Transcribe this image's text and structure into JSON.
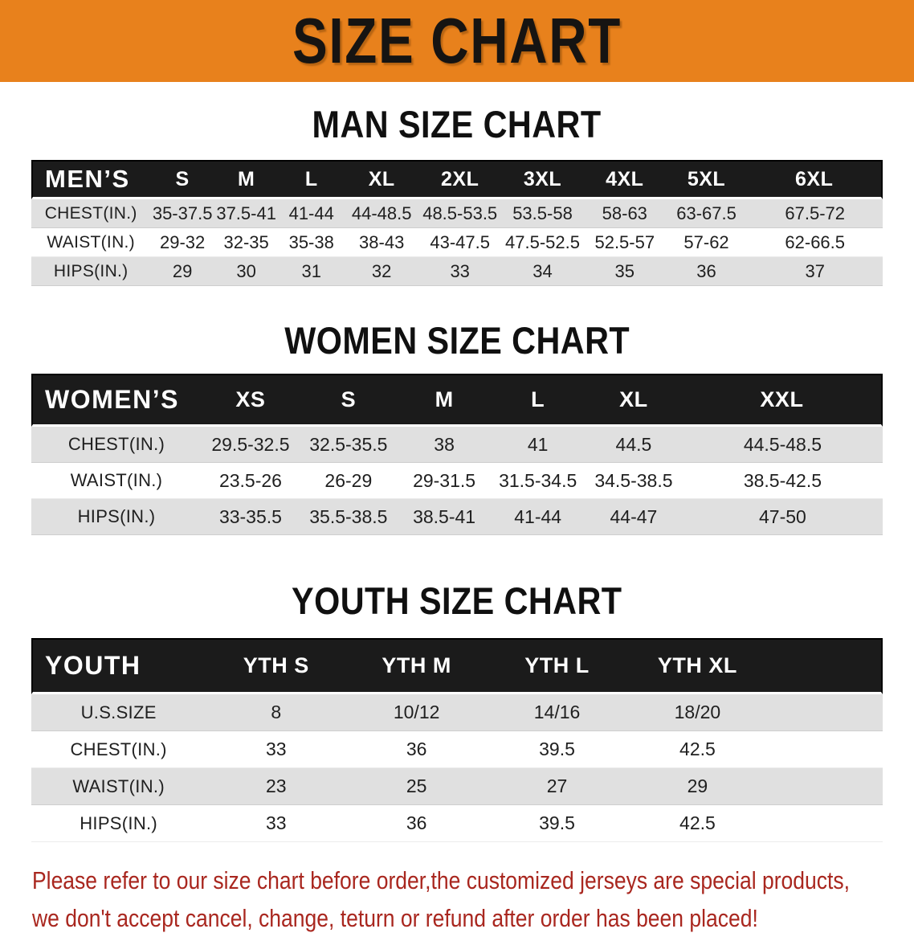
{
  "colors": {
    "banner-bg": "#e8811c",
    "header-bg": "#1b1b1b",
    "row-gray": "#e0e0e0",
    "disclaimer-red": "#a9271f"
  },
  "banner": {
    "title": "SIZE CHART"
  },
  "headings": {
    "men": "MAN SIZE CHART",
    "women": "WOMEN SIZE CHART",
    "youth": "YOUTH SIZE CHART"
  },
  "tables": {
    "men": {
      "label": "MEN’S",
      "sizes": [
        "S",
        "M",
        "L",
        "XL",
        "2XL",
        "3XL",
        "4XL",
        "5XL",
        "6XL"
      ],
      "rows": [
        {
          "label": "CHEST(IN.)",
          "values": [
            "35-37.5",
            "37.5-41",
            "41-44",
            "44-48.5",
            "48.5-53.5",
            "53.5-58",
            "58-63",
            "63-67.5",
            "67.5-72"
          ]
        },
        {
          "label": "WAIST(IN.)",
          "values": [
            "29-32",
            "32-35",
            "35-38",
            "38-43",
            "43-47.5",
            "47.5-52.5",
            "52.5-57",
            "57-62",
            "62-66.5"
          ]
        },
        {
          "label": "HIPS(IN.)",
          "values": [
            "29",
            "30",
            "31",
            "32",
            "33",
            "34",
            "35",
            "36",
            "37"
          ]
        }
      ]
    },
    "women": {
      "label": "WOMEN’S",
      "sizes": [
        "XS",
        "S",
        "M",
        "L",
        "XL",
        "XXL"
      ],
      "rows": [
        {
          "label": "CHEST(IN.)",
          "values": [
            "29.5-32.5",
            "32.5-35.5",
            "38",
            "41",
            "44.5",
            "44.5-48.5"
          ]
        },
        {
          "label": "WAIST(IN.)",
          "values": [
            "23.5-26",
            "26-29",
            "29-31.5",
            "31.5-34.5",
            "34.5-38.5",
            "38.5-42.5"
          ]
        },
        {
          "label": "HIPS(IN.)",
          "values": [
            "33-35.5",
            "35.5-38.5",
            "38.5-41",
            "41-44",
            "44-47",
            "47-50"
          ]
        }
      ]
    },
    "youth": {
      "label": "YOUTH",
      "sizes": [
        "YTH S",
        "YTH M",
        "YTH L",
        "YTH XL"
      ],
      "rows": [
        {
          "label": "U.S.SIZE",
          "values": [
            "8",
            "10/12",
            "14/16",
            "18/20"
          ]
        },
        {
          "label": "CHEST(IN.)",
          "values": [
            "33",
            "36",
            "39.5",
            "42.5"
          ]
        },
        {
          "label": "WAIST(IN.)",
          "values": [
            "23",
            "25",
            "27",
            "29"
          ]
        },
        {
          "label": "HIPS(IN.)",
          "values": [
            "33",
            "36",
            "39.5",
            "42.5"
          ]
        }
      ]
    }
  },
  "disclaimer": {
    "line1": "Please refer to our size chart before order,the customized jerseys are special products,",
    "line2": "we don't accept cancel, change, teturn or refund after order has been placed!"
  }
}
